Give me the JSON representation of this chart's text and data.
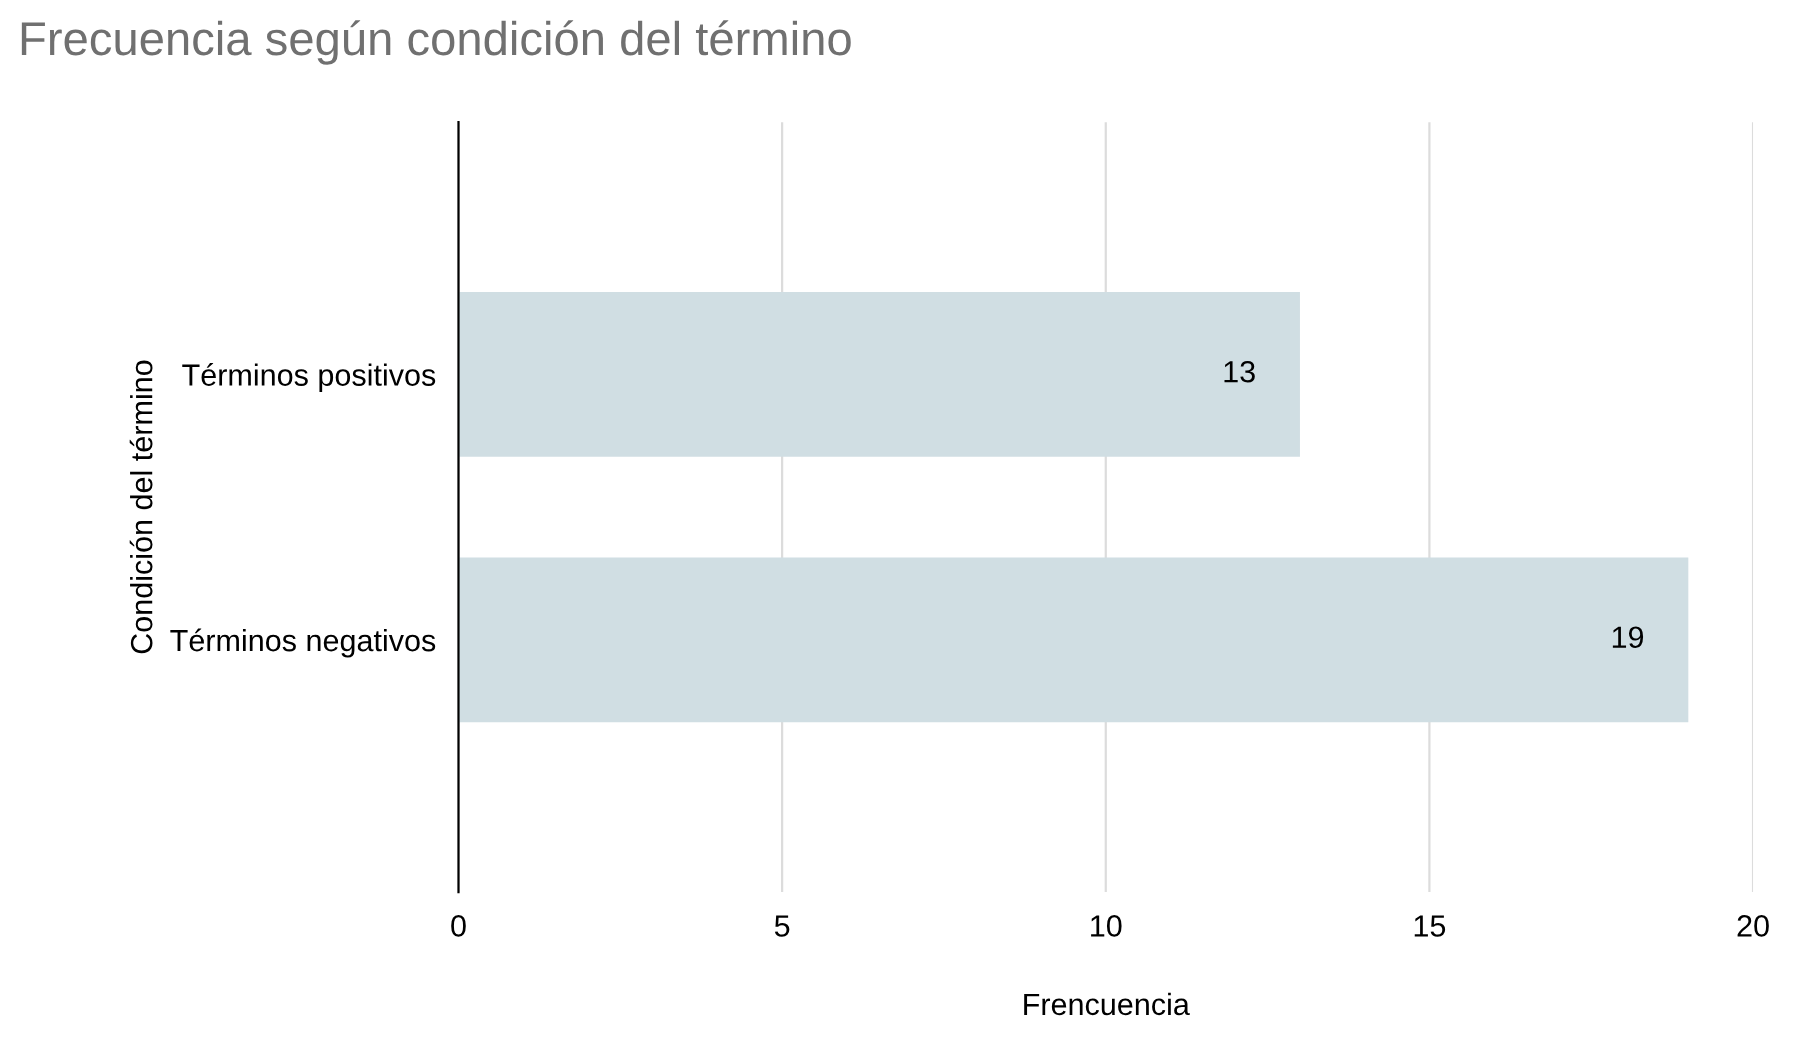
{
  "chart_data": {
    "type": "bar",
    "orientation": "horizontal",
    "title": "Frecuencia según condición del término",
    "xlabel": "Frencuencia",
    "ylabel": "Condición del término",
    "categories": [
      "Términos positivos",
      "Términos negativos"
    ],
    "values": [
      13,
      19
    ],
    "color": "#d0dee3",
    "data_labels": true,
    "xlim": [
      0,
      20
    ],
    "xticks": [
      0,
      5,
      10,
      15,
      20
    ],
    "grid": "x",
    "legend": false
  }
}
